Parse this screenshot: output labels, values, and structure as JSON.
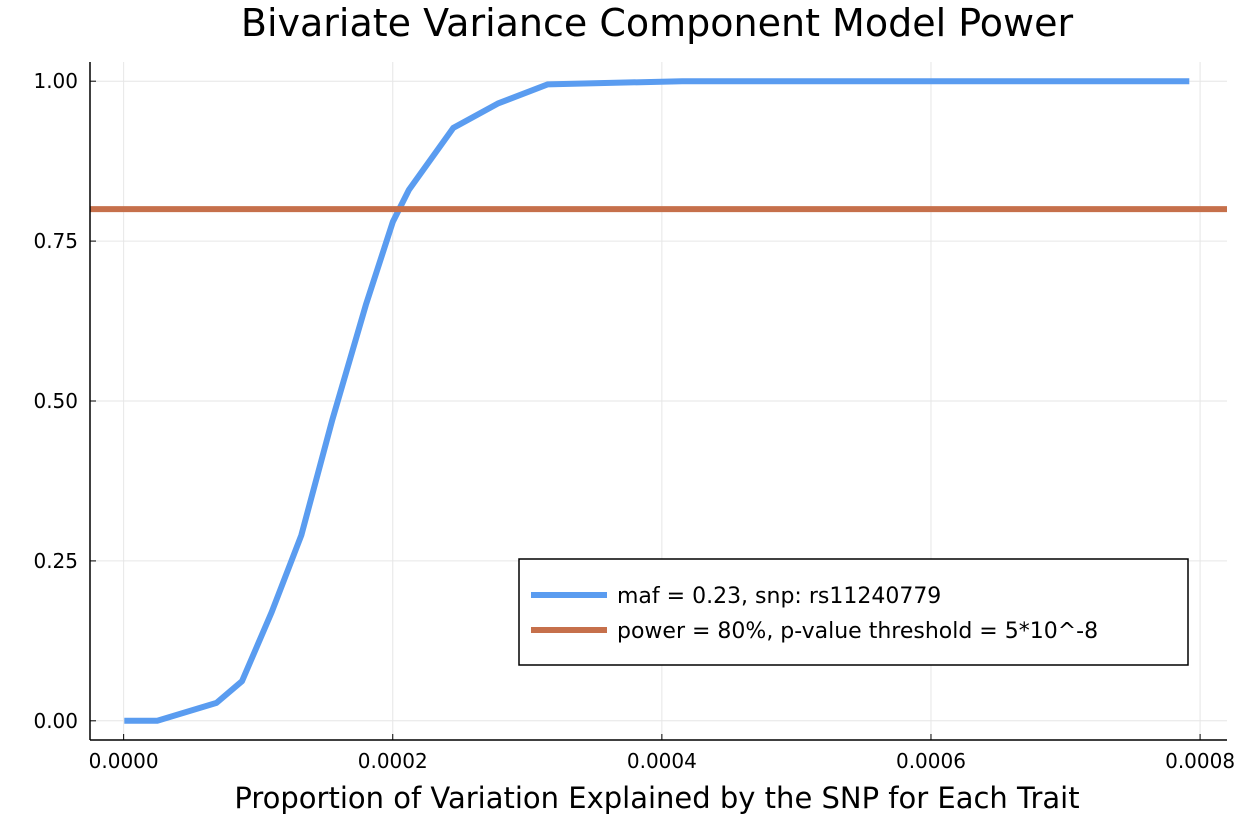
{
  "chart_data": {
    "type": "line",
    "title": "Bivariate Variance Component Model Power",
    "xlabel": "Proportion of Variation Explained by the SNP for Each Trait",
    "ylabel": "",
    "xlim": [
      -2.5e-05,
      0.00082
    ],
    "ylim": [
      -0.03,
      1.03
    ],
    "xticks": [
      0,
      0.0002,
      0.0004,
      0.0006,
      0.0008
    ],
    "xtick_labels": [
      "0.0000",
      "0.0002",
      "0.0004",
      "0.0006",
      "0.0008"
    ],
    "yticks": [
      0,
      0.25,
      0.5,
      0.75,
      1.0
    ],
    "ytick_labels": [
      "0.00",
      "0.25",
      "0.50",
      "0.75",
      "1.00"
    ],
    "grid": true,
    "legend_position": "bottom-right",
    "series": [
      {
        "name": "maf = 0.23, snp: rs11240779",
        "color": "#5a9cf0",
        "x": [
          5e-07,
          2.5e-05,
          6.9e-05,
          8.8e-05,
          0.00011,
          0.000132,
          0.000155,
          0.00018,
          0.0002,
          0.000212,
          0.000245,
          0.000278,
          0.000315,
          0.000415,
          0.000792
        ],
        "y": [
          0.0,
          0.0,
          0.028,
          0.062,
          0.17,
          0.29,
          0.47,
          0.65,
          0.78,
          0.83,
          0.927,
          0.965,
          0.995,
          1.0,
          1.0
        ]
      },
      {
        "name": "power = 80%, p-value threshold = 5*10^-8",
        "color": "#c6704b",
        "x": [
          -2.5e-05,
          0.00082
        ],
        "y": [
          0.8,
          0.8
        ]
      }
    ]
  }
}
